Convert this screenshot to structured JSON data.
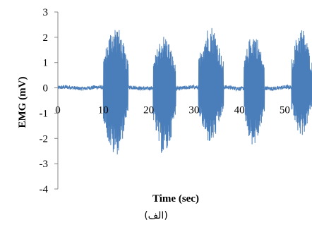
{
  "chart_data": {
    "type": "line",
    "xlabel": "Time (sec)",
    "ylabel": "EMG (mV)",
    "xlim": [
      0,
      56
    ],
    "ylim": [
      -4,
      3
    ],
    "x_ticks": [
      0,
      10,
      20,
      30,
      40,
      50
    ],
    "y_ticks": [
      3,
      2,
      1,
      0,
      -1,
      -2,
      -3,
      -4
    ],
    "series_color": "#4a7ebb",
    "baseline_noise_mV": 0.08,
    "bursts": [
      {
        "start": 10,
        "end": 15.5,
        "max": 2.5,
        "min": -2.7
      },
      {
        "start": 21,
        "end": 26,
        "max": 2.1,
        "min": -2.7
      },
      {
        "start": 31,
        "end": 36.5,
        "max": 2.5,
        "min": -2.2
      },
      {
        "start": 41,
        "end": 45.5,
        "max": 2.2,
        "min": -2.3
      },
      {
        "start": 51.5,
        "end": 56,
        "max": 2.4,
        "min": -1.9
      }
    ]
  },
  "caption": "(الف)"
}
